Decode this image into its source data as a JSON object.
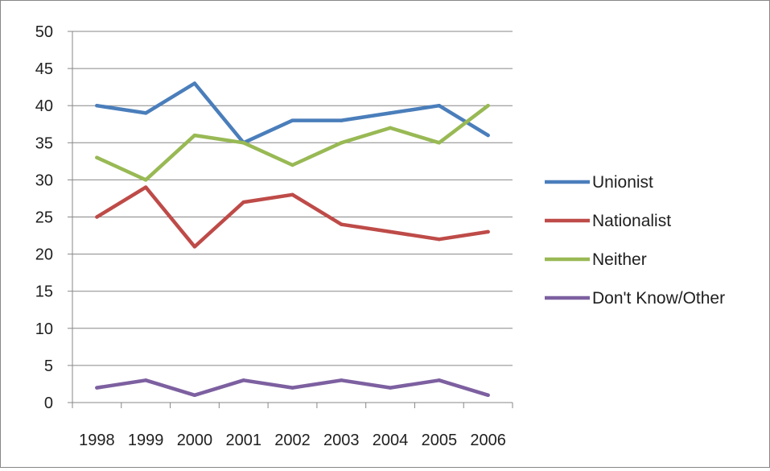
{
  "chart_data": {
    "type": "line",
    "title": "",
    "xlabel": "",
    "ylabel": "",
    "x": [
      "1998",
      "1999",
      "2000",
      "2001",
      "2002",
      "2003",
      "2004",
      "2005",
      "2006"
    ],
    "ylim": [
      0,
      50
    ],
    "yticks": [
      "0",
      "5",
      "10",
      "15",
      "20",
      "25",
      "30",
      "35",
      "40",
      "45",
      "50"
    ],
    "grid": "horizontal",
    "legend_position": "right",
    "series": [
      {
        "name": "Unionist",
        "color": "#4a7ebb",
        "values": [
          40,
          39,
          43,
          35,
          38,
          38,
          39,
          40,
          36
        ]
      },
      {
        "name": "Nationalist",
        "color": "#be4b48",
        "values": [
          25,
          29,
          21,
          27,
          28,
          24,
          23,
          22,
          23
        ]
      },
      {
        "name": "Neither",
        "color": "#98b954",
        "values": [
          33,
          30,
          36,
          35,
          32,
          35,
          37,
          35,
          40
        ]
      },
      {
        "name": "Don't Know/Other",
        "color": "#7d60a0",
        "values": [
          2,
          3,
          1,
          3,
          2,
          3,
          2,
          3,
          1
        ]
      }
    ]
  }
}
